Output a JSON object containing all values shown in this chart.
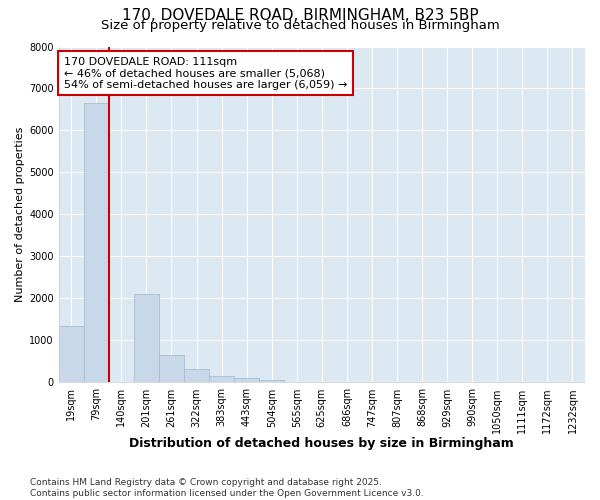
{
  "title1": "170, DOVEDALE ROAD, BIRMINGHAM, B23 5BP",
  "title2": "Size of property relative to detached houses in Birmingham",
  "xlabel": "Distribution of detached houses by size in Birmingham",
  "ylabel": "Number of detached properties",
  "categories": [
    "19sqm",
    "79sqm",
    "140sqm",
    "201sqm",
    "261sqm",
    "322sqm",
    "383sqm",
    "443sqm",
    "504sqm",
    "565sqm",
    "625sqm",
    "686sqm",
    "747sqm",
    "807sqm",
    "868sqm",
    "929sqm",
    "990sqm",
    "1050sqm",
    "1111sqm",
    "1172sqm",
    "1232sqm"
  ],
  "values": [
    1350,
    6650,
    0,
    2100,
    650,
    320,
    160,
    100,
    60,
    0,
    0,
    0,
    0,
    0,
    0,
    0,
    0,
    0,
    0,
    0,
    0
  ],
  "bar_color": "#c8d8e8",
  "bar_edge_color": "#a0b8cc",
  "vline_pos": 1.5,
  "vline_color": "#cc0000",
  "annotation_text": "170 DOVEDALE ROAD: 111sqm\n← 46% of detached houses are smaller (5,068)\n54% of semi-detached houses are larger (6,059) →",
  "annotation_box_color": "#ffffff",
  "annotation_box_edge": "#cc0000",
  "ylim": [
    0,
    8000
  ],
  "yticks": [
    0,
    1000,
    2000,
    3000,
    4000,
    5000,
    6000,
    7000,
    8000
  ],
  "footer": "Contains HM Land Registry data © Crown copyright and database right 2025.\nContains public sector information licensed under the Open Government Licence v3.0.",
  "fig_bg_color": "#ffffff",
  "plot_bg_color": "#dce8f2",
  "title1_fontsize": 11,
  "title2_fontsize": 9.5,
  "xlabel_fontsize": 9,
  "ylabel_fontsize": 8,
  "tick_fontsize": 7,
  "footer_fontsize": 6.5
}
